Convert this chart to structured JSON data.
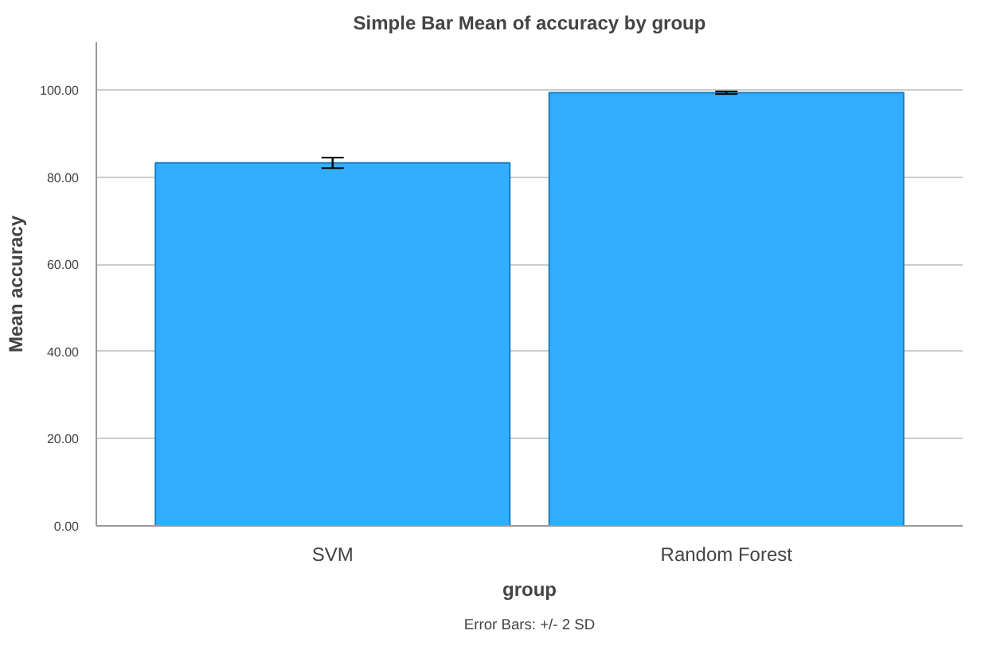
{
  "chart_data": {
    "type": "bar",
    "title": "Simple Bar Mean of accuracy by group",
    "xlabel": "group",
    "ylabel": "Mean accuracy",
    "categories": [
      "SVM",
      "Random Forest"
    ],
    "values": [
      83.3,
      99.4
    ],
    "errors": [
      1.2,
      0.3
    ],
    "color": "#33adff",
    "ylim": [
      0,
      111
    ],
    "yticks": [
      {
        "value": 0,
        "label": "0.00"
      },
      {
        "value": 20,
        "label": "20.00"
      },
      {
        "value": 40,
        "label": "40.00"
      },
      {
        "value": 60,
        "label": "60.00"
      },
      {
        "value": 80,
        "label": "80.00"
      },
      {
        "value": 100,
        "label": "100.00"
      }
    ],
    "grid": "y",
    "annotations": [
      "Error Bars: +/- 2 SD"
    ]
  }
}
